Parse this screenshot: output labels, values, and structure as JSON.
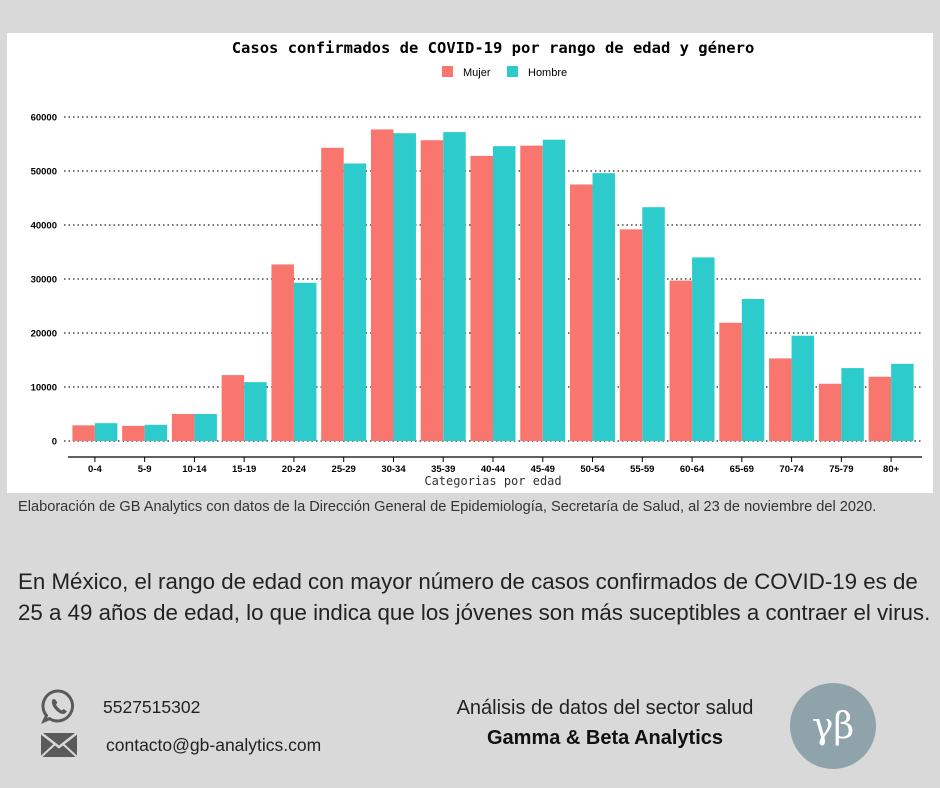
{
  "colors": {
    "mujer": "#f8766d",
    "hombre": "#2ecbcd",
    "background": "#d9d9d9",
    "logo_circle": "#8fa3ab"
  },
  "chart_data": {
    "type": "bar",
    "title": "Casos confirmados de COVID-19 por rango de edad y género",
    "xlabel": "Categorias por edad",
    "ylabel": "",
    "ylim": [
      0,
      62000
    ],
    "yticks": [
      0,
      10000,
      20000,
      30000,
      40000,
      50000,
      60000
    ],
    "ytick_labels": [
      "0",
      "10000",
      "20000",
      "30000",
      "40000",
      "50000",
      "60000"
    ],
    "grid": "horizontal dotted",
    "legend_position": "top-center",
    "categories": [
      "0-4",
      "5-9",
      "10-14",
      "15-19",
      "20-24",
      "25-29",
      "30-34",
      "35-39",
      "40-44",
      "45-49",
      "50-54",
      "55-59",
      "60-64",
      "65-69",
      "70-74",
      "75-79",
      "80+"
    ],
    "series": [
      {
        "name": "Mujer",
        "values": [
          2900,
          2800,
          5000,
          12200,
          32700,
          54300,
          57700,
          55700,
          52800,
          54700,
          47500,
          39200,
          29700,
          21900,
          15300,
          10600,
          11900
        ]
      },
      {
        "name": "Hombre",
        "values": [
          3300,
          3000,
          5000,
          10900,
          29300,
          51400,
          57000,
          57200,
          54600,
          55800,
          49600,
          43300,
          34000,
          26300,
          19500,
          13500,
          14300
        ]
      }
    ]
  },
  "caption": "Elaboración de GB Analytics con datos de la Dirección General de Epidemiología, Secretaría de Salud, al 23 de noviembre del 2020.",
  "paragraph": "En México, el rango de edad con mayor número de casos confirmados de  COVID-19 es de 25 a 49 años de edad, lo que indica que los jóvenes  son más suceptibles a contraer el virus.",
  "contact": {
    "phone": "5527515302",
    "phone_icon": "whatsapp-icon",
    "email": "contacto@gb-analytics.com",
    "email_icon": "envelope-icon"
  },
  "brand": {
    "tagline": "Análisis de datos del sector salud",
    "name": "Gamma & Beta  Analytics",
    "logo_text": "γβ"
  }
}
